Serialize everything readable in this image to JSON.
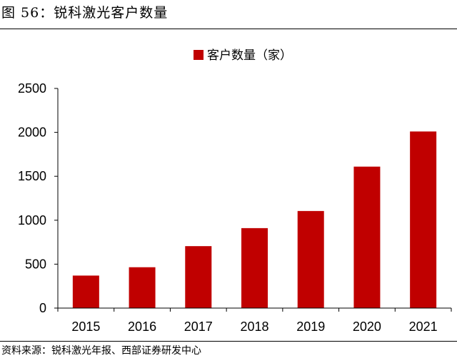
{
  "figure": {
    "title": "图 56：锐科激光客户数量",
    "source": "资料来源：锐科激光年报、西部证券研发中心"
  },
  "colors": {
    "bar": "#C00000",
    "axis": "#000000"
  },
  "chart_data": {
    "type": "bar",
    "title": "",
    "xlabel": "",
    "ylabel": "",
    "categories": [
      "2015",
      "2016",
      "2017",
      "2018",
      "2019",
      "2020",
      "2021"
    ],
    "series": [
      {
        "name": "客户数量（家）",
        "values": [
          370,
          465,
          705,
          910,
          1105,
          1610,
          2010
        ]
      }
    ],
    "ylim": [
      0,
      2500
    ],
    "yticks": [
      0,
      500,
      1000,
      1500,
      2000,
      2500
    ],
    "ytick_labels": [
      "0",
      "500",
      "1000",
      "1500",
      "2000",
      "2500"
    ],
    "legend_position": "top-center",
    "grid": false
  }
}
